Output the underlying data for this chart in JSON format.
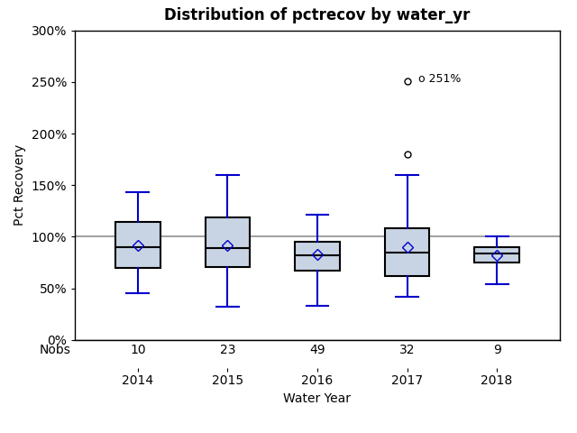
{
  "title": "Distribution of pctrecov by water_yr",
  "xlabel": "Water Year",
  "ylabel": "Pct Recovery",
  "nobs_label": "Nobs",
  "categories": [
    2014,
    2015,
    2016,
    2017,
    2018
  ],
  "nobs": [
    10,
    23,
    49,
    32,
    9
  ],
  "box_stats": [
    {
      "year": 2014,
      "whislo": 0.45,
      "q1": 0.7,
      "med": 0.9,
      "mean": 0.92,
      "q3": 1.14,
      "whishi": 1.43,
      "fliers": []
    },
    {
      "year": 2015,
      "whislo": 0.32,
      "q1": 0.71,
      "med": 0.89,
      "mean": 0.92,
      "q3": 1.19,
      "whishi": 1.6,
      "fliers": []
    },
    {
      "year": 2016,
      "whislo": 0.33,
      "q1": 0.67,
      "med": 0.82,
      "mean": 0.83,
      "q3": 0.95,
      "whishi": 1.21,
      "fliers": []
    },
    {
      "year": 2017,
      "whislo": 0.42,
      "q1": 0.62,
      "med": 0.85,
      "mean": 0.9,
      "q3": 1.08,
      "whishi": 1.6,
      "fliers": [
        1.8,
        2.51
      ]
    },
    {
      "year": 2018,
      "whislo": 0.54,
      "q1": 0.75,
      "med": 0.84,
      "mean": 0.82,
      "q3": 0.9,
      "whishi": 1.0,
      "fliers": []
    }
  ],
  "reference_line": 1.0,
  "ylim": [
    0.0,
    3.0
  ],
  "yticks": [
    0.0,
    0.5,
    1.0,
    1.5,
    2.0,
    2.5,
    3.0
  ],
  "ytick_labels": [
    "0%",
    "50%",
    "100%",
    "150%",
    "200%",
    "250%",
    "300%"
  ],
  "box_facecolor": "#c8d4e3",
  "box_edgecolor": "#000000",
  "whisker_color": "#0000cc",
  "median_color": "#000000",
  "mean_marker_color": "#0000cc",
  "flier_color": "#000000",
  "reference_line_color": "#909090",
  "background_color": "#ffffff",
  "plot_bg_color": "#ffffff",
  "outlier_label_2017": "251%",
  "outlier_2017_high": 2.51,
  "outlier_2017_mid": 1.8
}
